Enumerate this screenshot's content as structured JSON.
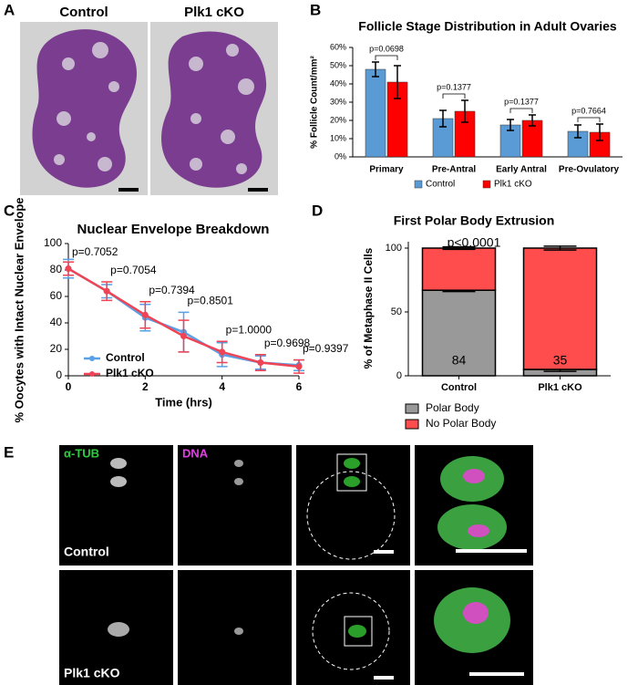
{
  "panel_labels": [
    "A",
    "B",
    "C",
    "D",
    "E"
  ],
  "panel_a": {
    "labels": [
      "Control",
      "Plk1 cKO"
    ]
  },
  "panel_e": {
    "channels": [
      "α-TUB",
      "DNA"
    ],
    "rows": [
      "Control",
      "Plk1 cKO"
    ]
  },
  "chart_data": [
    {
      "type": "bar",
      "title": "Follicle Stage Distribution in Adult Ovaries",
      "y_label": "% Follicle Count/mm²",
      "categories": [
        "Primary",
        "Pre-Antral",
        "Early Antral",
        "Pre-Ovulatory"
      ],
      "series": [
        {
          "name": "Control",
          "color": "#5b9bd5",
          "values": [
            48,
            21,
            17.5,
            14
          ],
          "errors": [
            4,
            4.5,
            3,
            3.5
          ]
        },
        {
          "name": "Plk1 cKO",
          "color": "#ff0000",
          "values": [
            41,
            25,
            20,
            13.5
          ],
          "errors": [
            9,
            6,
            3,
            4.5
          ]
        }
      ],
      "annotations": [
        "p=0.0698",
        "p=0.1377",
        "p=0.1377",
        "p=0.7664"
      ],
      "ylim": [
        0,
        60
      ],
      "yticks": [
        {
          "value": 0,
          "label": "0%"
        },
        {
          "value": 10,
          "label": "10%"
        },
        {
          "value": 20,
          "label": "20%"
        },
        {
          "value": 30,
          "label": "30%"
        },
        {
          "value": 40,
          "label": "40%"
        },
        {
          "value": 50,
          "label": "50%"
        },
        {
          "value": 60,
          "label": "60%"
        }
      ],
      "legend": "bottom"
    },
    {
      "type": "line",
      "title": "Nuclear Envelope Breakdown",
      "x_label": "Time (hrs)",
      "y_label": "% Oocytes with Intact Nuclear Envelope",
      "x": [
        0,
        1,
        2,
        3,
        4,
        5,
        6
      ],
      "series": [
        {
          "name": "Control",
          "color": "#5aa0e6",
          "values": [
            81,
            64,
            44,
            33,
            16,
            10,
            8
          ],
          "errors": [
            7,
            5,
            10,
            15,
            9,
            5,
            4
          ]
        },
        {
          "name": "Plk1 cKO",
          "color": "#ef4455",
          "values": [
            81,
            64,
            46,
            30,
            18,
            10,
            7
          ],
          "errors": [
            5,
            7,
            10,
            12,
            8,
            6,
            5
          ]
        }
      ],
      "annotations": [
        "p=0.7052",
        "p=0.7054",
        "p=0.7394",
        "p=0.8501",
        "p=1.0000",
        "p=0.9698",
        "p=0.9397"
      ],
      "xlim": [
        0,
        6
      ],
      "xticks": [
        0,
        2,
        4,
        6
      ],
      "ylim": [
        0,
        100
      ],
      "yticks": [
        0,
        20,
        40,
        60,
        80,
        100
      ],
      "legend": "lower left"
    },
    {
      "type": "stacked_bar",
      "title": "First Polar Body Extrusion",
      "subtitle": "p<0.0001",
      "y_label": "% of Metaphase II Cells",
      "categories": [
        "Control",
        "Plk1 cKO"
      ],
      "series": [
        {
          "name": "Polar Body",
          "color": "#999999",
          "values": [
            67,
            5
          ],
          "errors": [
            1,
            1.5
          ]
        },
        {
          "name": "No Polar Body",
          "color": "#ff4d4d",
          "values": [
            33,
            95
          ],
          "errors": [
            1,
            1.5
          ]
        }
      ],
      "n": [
        84,
        35
      ],
      "ylim": [
        0,
        105
      ],
      "yticks": [
        0,
        50,
        100
      ],
      "legend": "bottom"
    }
  ]
}
